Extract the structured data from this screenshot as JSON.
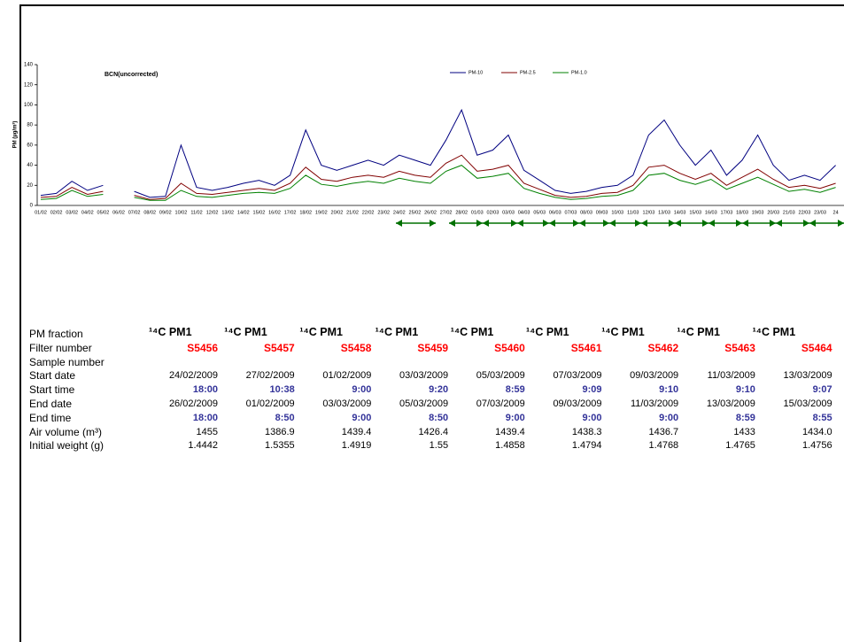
{
  "chart_data": {
    "type": "line",
    "title": "BCN(uncorrected)",
    "y_label": "PM (µg/m³)",
    "categories": [
      "01/02",
      "02/02",
      "03/02",
      "04/02",
      "05/02",
      "06/02",
      "07/02",
      "08/02",
      "09/02",
      "10/02",
      "11/02",
      "12/02",
      "13/02",
      "14/02",
      "15/02",
      "16/02",
      "17/02",
      "18/02",
      "19/02",
      "20/02",
      "21/02",
      "22/02",
      "23/02",
      "24/02",
      "25/02",
      "26/02",
      "27/02",
      "28/02",
      "01/03",
      "02/03",
      "03/03",
      "04/03",
      "05/03",
      "06/03",
      "07/03",
      "08/03",
      "09/03",
      "10/03",
      "11/03",
      "12/03",
      "13/03",
      "14/03",
      "15/03",
      "16/03",
      "17/03",
      "18/03",
      "19/03",
      "20/03",
      "21/03",
      "22/03",
      "23/03",
      "24"
    ],
    "series": [
      {
        "name": "PM-10",
        "color": "#000080",
        "values": [
          10,
          12,
          24,
          15,
          20,
          null,
          14,
          8,
          9,
          60,
          18,
          15,
          18,
          22,
          25,
          20,
          30,
          75,
          40,
          35,
          40,
          45,
          40,
          50,
          45,
          40,
          65,
          95,
          50,
          55,
          70,
          35,
          25,
          15,
          12,
          14,
          18,
          20,
          30,
          70,
          85,
          60,
          40,
          55,
          30,
          45,
          70,
          40,
          25,
          30,
          25,
          40
        ]
      },
      {
        "name": "PM-2.5",
        "color": "#800000",
        "values": [
          8,
          9,
          18,
          11,
          14,
          null,
          10,
          6,
          7,
          22,
          12,
          11,
          13,
          15,
          17,
          15,
          22,
          38,
          26,
          24,
          28,
          30,
          28,
          34,
          30,
          28,
          42,
          50,
          34,
          36,
          40,
          22,
          16,
          10,
          8,
          9,
          12,
          13,
          20,
          38,
          40,
          32,
          26,
          32,
          20,
          28,
          36,
          26,
          18,
          20,
          17,
          22
        ]
      },
      {
        "name": "PM-1.0",
        "color": "#008000",
        "values": [
          6,
          7,
          15,
          9,
          11,
          null,
          8,
          5,
          5,
          15,
          9,
          8,
          10,
          12,
          13,
          12,
          17,
          30,
          21,
          19,
          22,
          24,
          22,
          27,
          24,
          22,
          34,
          40,
          27,
          29,
          32,
          17,
          12,
          8,
          6,
          7,
          9,
          10,
          15,
          30,
          32,
          25,
          21,
          26,
          16,
          22,
          28,
          21,
          14,
          16,
          13,
          18
        ]
      }
    ],
    "ylim": [
      0,
      140
    ],
    "yticks": [
      0,
      20,
      40,
      60,
      80,
      100,
      120,
      140
    ],
    "legend": "top"
  },
  "table": {
    "header": [
      "PM fraction",
      "¹⁴C PM1",
      "¹⁴C PM1",
      "¹⁴C PM1",
      "¹⁴C PM1",
      "¹⁴C PM1",
      "¹⁴C PM1",
      "¹⁴C PM1",
      "¹⁴C PM1",
      "¹⁴C PM1"
    ],
    "rows": [
      {
        "label": "Filter number",
        "values": [
          "S5456",
          "S5457",
          "S5458",
          "S5459",
          "S5460",
          "S5461",
          "S5462",
          "S5463",
          "S5464"
        ]
      },
      {
        "label": "Sample number"
      },
      {
        "label": "Start date",
        "values": [
          "24/02/2009",
          "27/02/2009",
          "01/02/2009",
          "03/03/2009",
          "05/03/2009",
          "07/03/2009",
          "09/03/2009",
          "11/03/2009",
          "13/03/2009"
        ]
      },
      {
        "label": "Start time",
        "values": [
          "18:00",
          "10:38",
          "9:00",
          "9:20",
          "8:59",
          "9:09",
          "9:10",
          "9:10",
          "9:07"
        ]
      },
      {
        "label": "End date",
        "values": [
          "26/02/2009",
          "01/02/2009",
          "03/03/2009",
          "05/03/2009",
          "07/03/2009",
          "09/03/2009",
          "11/03/2009",
          "13/03/2009",
          "15/03/2009"
        ]
      },
      {
        "label": "End time",
        "values": [
          "18:00",
          "8:50",
          "9:00",
          "8:50",
          "9:00",
          "9:00",
          "9:00",
          "8:59",
          "8:55"
        ]
      },
      {
        "label": "Air volume (m³)",
        "values": [
          "1455",
          "1386.9",
          "1439.4",
          "1426.4",
          "1439.4",
          "1438.3",
          "1436.7",
          "1433",
          "1434.0"
        ]
      },
      {
        "label": "Initial weight (g)",
        "values": [
          "1.4442",
          "1.5355",
          "1.4919",
          "1.55",
          "1.4858",
          "1.4794",
          "1.4768",
          "1.4765",
          "1.4756"
        ]
      }
    ]
  }
}
